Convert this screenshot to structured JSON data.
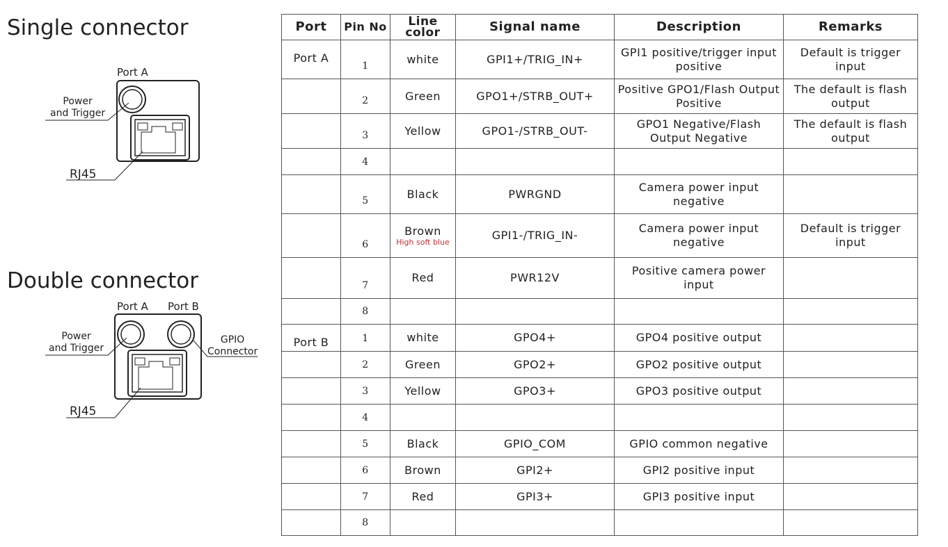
{
  "single": {
    "title": "Single connector",
    "port_a": "Port A",
    "power_trigger": "Power\nand Trigger",
    "rj45": "RJ45"
  },
  "double": {
    "title": "Double connector",
    "port_a": "Port A",
    "port_b": "Port B",
    "power_trigger": "Power\nand Trigger",
    "gpio": "GPIO\nConnector",
    "rj45": "RJ45"
  },
  "table": {
    "headers": [
      "Port",
      "Pin No",
      "Line color",
      "Signal name",
      "Description",
      "Remarks"
    ],
    "rows": [
      {
        "port": "Port A",
        "pin": "1",
        "color": "white",
        "signal": "GPI1+/TRIG_IN+",
        "desc": "GPI1 positive/trigger input positive",
        "remarks": "Default is trigger input"
      },
      {
        "port": "",
        "pin": "2",
        "color": "Green",
        "signal": "GPO1+/STRB_OUT+",
        "desc": "Positive GPO1/Flash Output Positive",
        "remarks": "The default is flash output"
      },
      {
        "port": "",
        "pin": "3",
        "color": "Yellow",
        "signal": "GPO1-/STRB_OUT-",
        "desc": "GPO1 Negative/Flash Output Negative",
        "remarks": "The default is flash output"
      },
      {
        "port": "",
        "pin": "4",
        "color": "",
        "signal": "",
        "desc": "",
        "remarks": ""
      },
      {
        "port": "",
        "pin": "5",
        "color": "Black",
        "signal": "PWRGND",
        "desc": "Camera power input negative",
        "remarks": ""
      },
      {
        "port": "",
        "pin": "6",
        "color": "Brown",
        "color_note": "High soft blue",
        "signal": "GPI1-/TRIG_IN-",
        "desc": "Camera power input negative",
        "remarks": "Default is trigger input"
      },
      {
        "port": "",
        "pin": "7",
        "color": "Red",
        "signal": "PWR12V",
        "desc": "Positive camera power input",
        "remarks": ""
      },
      {
        "port": "",
        "pin": "8",
        "color": "",
        "signal": "",
        "desc": "",
        "remarks": ""
      },
      {
        "port": "Port B",
        "pin": "1",
        "color": "white",
        "signal": "GPO4+",
        "desc": "GPO4 positive output",
        "remarks": ""
      },
      {
        "port": "",
        "pin": "2",
        "color": "Green",
        "signal": "GPO2+",
        "desc": "GPO2 positive output",
        "remarks": ""
      },
      {
        "port": "",
        "pin": "3",
        "color": "Yellow",
        "signal": "GPO3+",
        "desc": "GPO3 positive output",
        "remarks": ""
      },
      {
        "port": "",
        "pin": "4",
        "color": "",
        "signal": "",
        "desc": "",
        "remarks": ""
      },
      {
        "port": "",
        "pin": "5",
        "color": "Black",
        "signal": "GPIO_COM",
        "desc": "GPIO common negative",
        "remarks": ""
      },
      {
        "port": "",
        "pin": "6",
        "color": "Brown",
        "signal": "GPI2+",
        "desc": "GPI2 positive input",
        "remarks": ""
      },
      {
        "port": "",
        "pin": "7",
        "color": "Red",
        "signal": "GPI3+",
        "desc": "GPI3 positive input",
        "remarks": ""
      },
      {
        "port": "",
        "pin": "8",
        "color": "",
        "signal": "",
        "desc": "",
        "remarks": ""
      }
    ]
  }
}
